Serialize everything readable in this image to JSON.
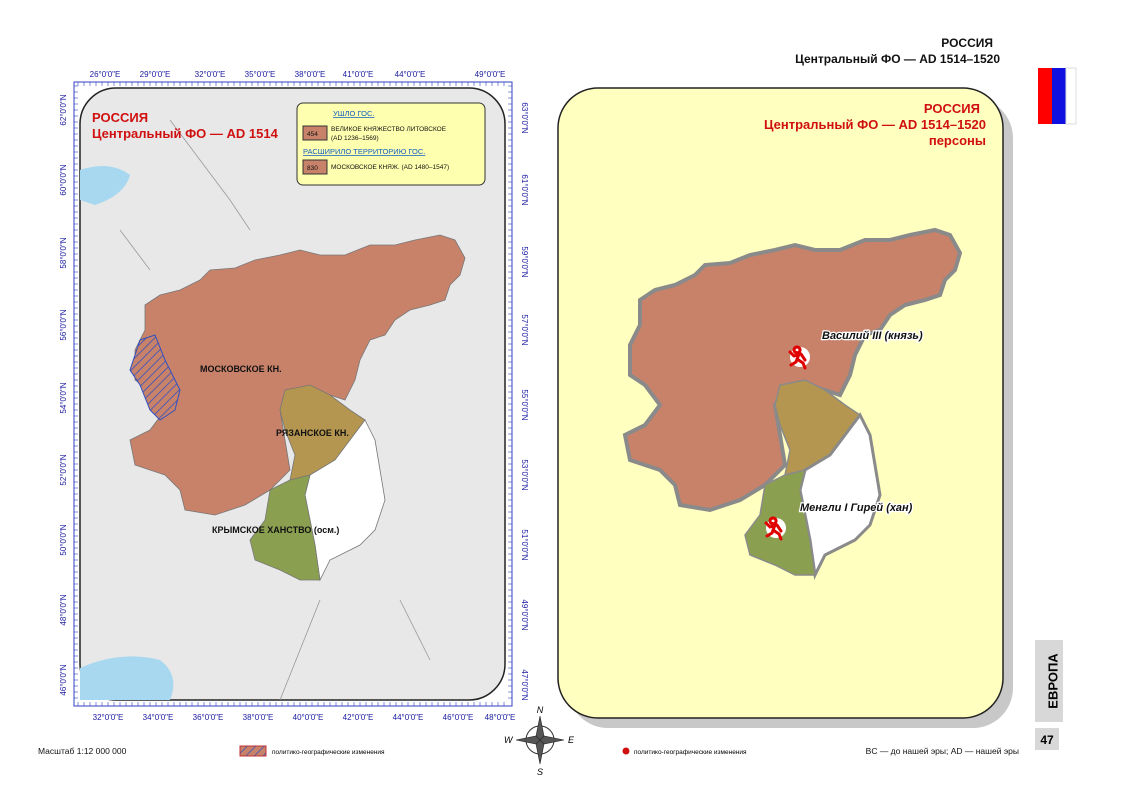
{
  "header": {
    "title": "РОССИЯ",
    "subtitle": "Центральный ФО — AD 1514–1520"
  },
  "left_map": {
    "title": "РОССИЯ",
    "subtitle": "Центральный ФО — AD 1514",
    "legend": {
      "lost_heading": "УШЛО ГОС.",
      "lost_code": "454",
      "lost_label_1": "ВЕЛИКОЕ КНЯЖЕСТВО ЛИТОВСКОЕ",
      "lost_label_2": "(AD 1236–1569)",
      "gained_heading": "РАСШИРИЛО ТЕРРИТОРИЮ ГОС.",
      "gained_code": "830",
      "gained_label": "МОСКОВСКОЕ КНЯЖ. (AD 1480–1547)"
    },
    "regions": [
      "МОСКОВСКОЕ КН.",
      "РЯЗАНСКОЕ КН.",
      "КРЫМСКОЕ ХАНСТВО (осм.)"
    ],
    "top_ticks": [
      "26°0'0\"E",
      "29°0'0\"E",
      "32°0'0\"E",
      "35°0'0\"E",
      "38°0'0\"E",
      "41°0'0\"E",
      "44°0'0\"E",
      "49°0'0\"E"
    ],
    "bottom_ticks": [
      "32°0'0\"E",
      "34°0'0\"E",
      "36°0'0\"E",
      "38°0'0\"E",
      "40°0'0\"E",
      "42°0'0\"E",
      "44°0'0\"E",
      "46°0'0\"E",
      "48°0'0\"E"
    ],
    "left_ticks": [
      "62°0'0\"N",
      "60°0'0\"N",
      "58°0'0\"N",
      "56°0'0\"N",
      "54°0'0\"N",
      "52°0'0\"N",
      "50°0'0\"N",
      "48°0'0\"N",
      "46°0'0\"N"
    ],
    "right_ticks": [
      "63°0'0\"N",
      "61°0'0\"N",
      "59°0'0\"N",
      "57°0'0\"N",
      "55°0'0\"N",
      "53°0'0\"N",
      "51°0'0\"N",
      "49°0'0\"N",
      "47°0'0\"N"
    ]
  },
  "right_map": {
    "title": "РОССИЯ",
    "subtitle": "Центральный ФО — AD 1514–1520",
    "caption": "персоны",
    "persons": [
      "Василий III (князь)",
      "Менгли I Гирей (хан)"
    ]
  },
  "compass": [
    "N",
    "E",
    "S",
    "W"
  ],
  "footer": {
    "scale": "Масштаб 1:12 000 000",
    "legend_hatch": "политико-географические изменения",
    "legend_dot": "политико-географические изменения",
    "era_note": "BC — до нашей эры; AD — нашей эры",
    "section": "ЕВРОПА",
    "page": "47"
  }
}
